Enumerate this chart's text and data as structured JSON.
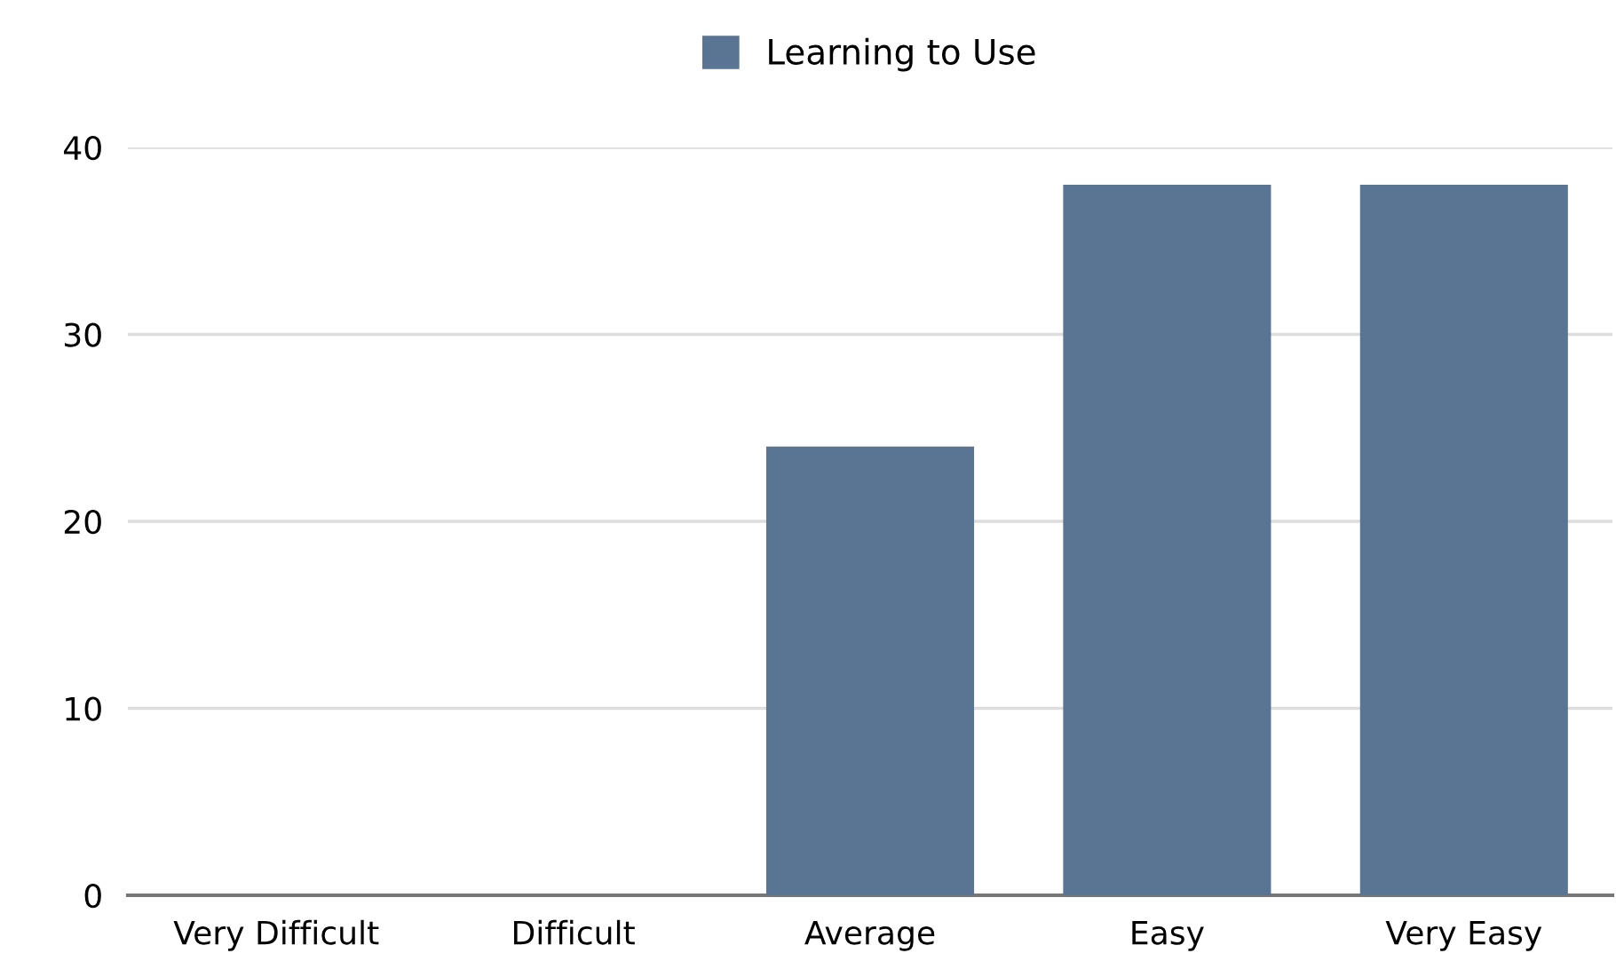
{
  "chart_data": {
    "type": "bar",
    "categories": [
      "Very Difficult",
      "Difficult",
      "Average",
      "Easy",
      "Very Easy"
    ],
    "series": [
      {
        "name": "Learning to Use",
        "color": "#5a7593",
        "values": [
          0,
          0,
          24,
          38,
          38
        ]
      }
    ],
    "ylim": [
      0,
      40
    ],
    "yticks": [
      0,
      10,
      20,
      30,
      40
    ],
    "grid": "y",
    "legend": "top"
  }
}
